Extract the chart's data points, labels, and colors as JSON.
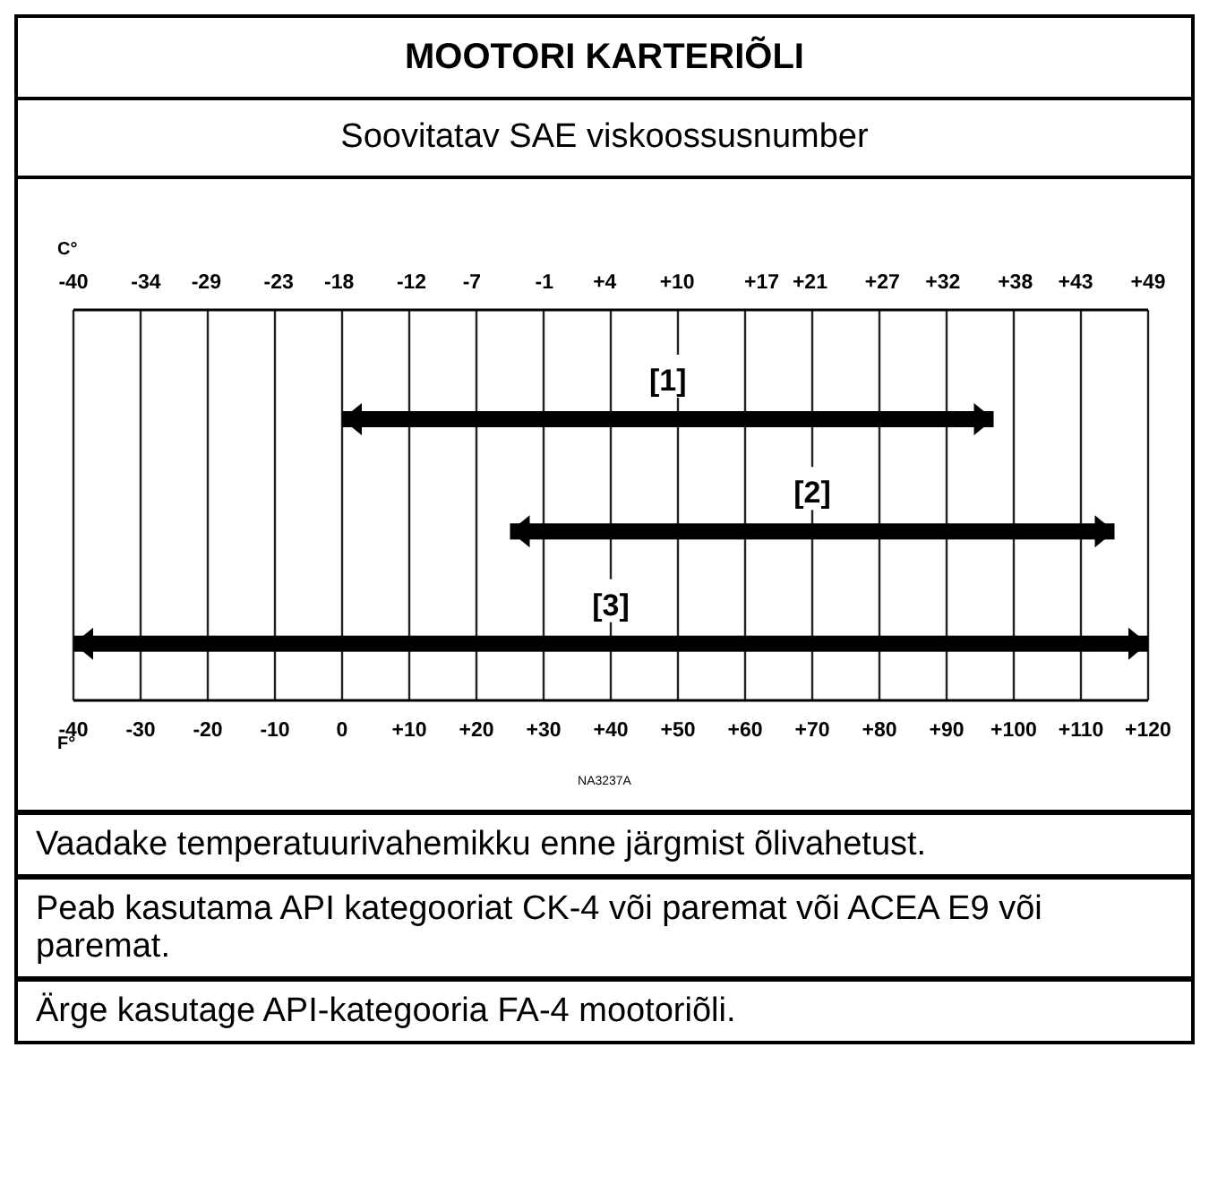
{
  "chart_data": {
    "type": "bar",
    "orientation": "horizontal",
    "title": "MOOTORI KARTERIÕLI",
    "subtitle": "Soovitatav SAE viskoossusnumber",
    "categories": [
      "[1]",
      "[2]",
      "[3]"
    ],
    "values": [
      97,
      90,
      160
    ],
    "base": [
      0,
      25,
      -40
    ],
    "color": "#000000",
    "xlabel": "F°",
    "x2label": "C°",
    "xlim": [
      -40,
      120
    ],
    "xticks": [
      -40,
      -30,
      -20,
      -10,
      0,
      {
        "value": 10,
        "label": "+10"
      },
      {
        "value": 20,
        "label": "+20"
      },
      {
        "value": 30,
        "label": "+30"
      },
      {
        "value": 40,
        "label": "+40"
      },
      {
        "value": 50,
        "label": "+50"
      },
      {
        "value": 60,
        "label": "+60"
      },
      {
        "value": 70,
        "label": "+70"
      },
      {
        "value": 80,
        "label": "+80"
      },
      {
        "value": 90,
        "label": "+90"
      },
      {
        "value": 100,
        "label": "+100"
      },
      {
        "value": 110,
        "label": "+110"
      },
      {
        "value": 120,
        "label": "+120"
      }
    ],
    "x2lim": [
      -40,
      49
    ],
    "x2ticks": [
      -40,
      -34,
      -29,
      -23,
      -18,
      -12,
      -7,
      -1,
      {
        "value": 4,
        "label": "+4"
      },
      {
        "value": 10,
        "label": "+10"
      },
      {
        "value": 17,
        "label": "+17"
      },
      {
        "value": 21,
        "label": "+21"
      },
      {
        "value": 27,
        "label": "+27"
      },
      {
        "value": 32,
        "label": "+32"
      },
      {
        "value": 38,
        "label": "+38"
      },
      {
        "value": 43,
        "label": "+43"
      },
      {
        "value": 49,
        "label": "+49"
      }
    ],
    "grid": "x",
    "legend": false,
    "annotations": [
      "NA3237A",
      "Vaadake temperatuurivahemikku enne järgmist õlivahetust.",
      "Peab kasutama API kategooriat CK-4 või paremat või ACEA E9 või paremat.",
      "Ärge kasutage API-kategooria FA-4 mootoriõli."
    ]
  }
}
